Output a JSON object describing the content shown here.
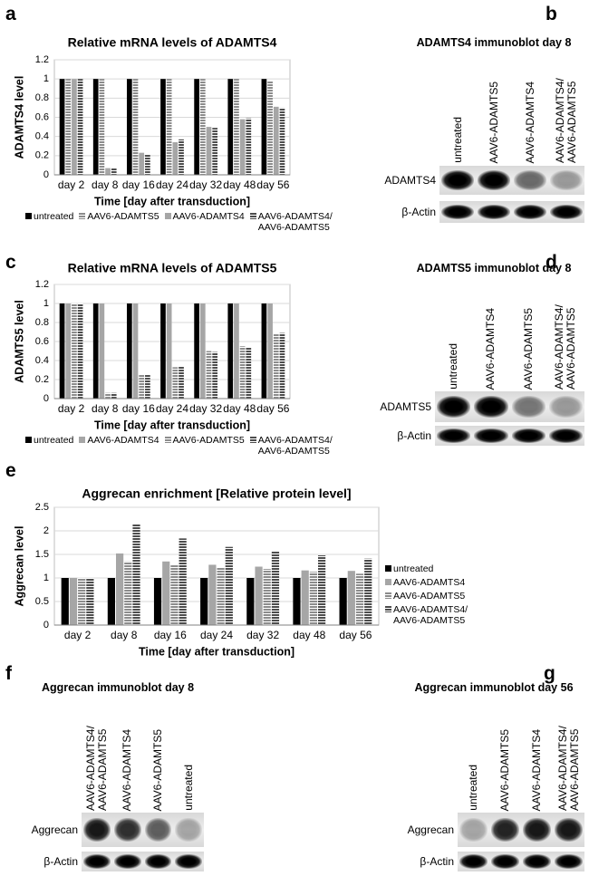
{
  "panel_letters": [
    "a",
    "b",
    "c",
    "d",
    "e",
    "f",
    "g"
  ],
  "chart_data": [
    {
      "type": "bar",
      "title": "Relative mRNA levels of ADAMTS4",
      "xlabel": "Time [day after transduction]",
      "ylabel": "ADAMTS4 level",
      "categories": [
        "day 2",
        "day 8",
        "day 16",
        "day 24",
        "day 32",
        "day 48",
        "day 56"
      ],
      "series": [
        {
          "name": "untreated",
          "color": "#000000",
          "hatch": false,
          "values": [
            1,
            1,
            1,
            1,
            1,
            1,
            1
          ]
        },
        {
          "name": "AAV6-ADAMTS5",
          "color": "#8c8c8c",
          "hatch": true,
          "values": [
            1,
            1,
            1,
            1,
            1,
            1,
            0.98
          ]
        },
        {
          "name": "AAV6-ADAMTS4",
          "color": "#a6a6a6",
          "hatch": false,
          "values": [
            1,
            0.07,
            0.23,
            0.34,
            0.5,
            0.58,
            0.71
          ]
        },
        {
          "name": "AAV6-ADAMTS4/ AAV6-ADAMTS5",
          "color": "#4d4d4d",
          "hatch": true,
          "values": [
            1,
            0.07,
            0.21,
            0.37,
            0.49,
            0.59,
            0.7
          ]
        }
      ],
      "ylim": [
        0,
        1.2
      ],
      "yticks": [
        0,
        0.2,
        0.4,
        0.6,
        0.8,
        1,
        1.2
      ],
      "grid": true,
      "legend": "bottom"
    },
    {
      "type": "bar",
      "title": "Relative mRNA levels of ADAMTS5",
      "xlabel": "Time [day after transduction]",
      "ylabel": "ADAMTS5 level",
      "categories": [
        "day 2",
        "day 8",
        "day 16",
        "day 24",
        "day 32",
        "day 48",
        "day 56"
      ],
      "series": [
        {
          "name": "untreated",
          "color": "#000000",
          "hatch": false,
          "values": [
            1,
            1,
            1,
            1,
            1,
            1,
            1
          ]
        },
        {
          "name": "AAV6-ADAMTS4",
          "color": "#a6a6a6",
          "hatch": false,
          "values": [
            1,
            1,
            1,
            1,
            1,
            1,
            1
          ]
        },
        {
          "name": "AAV6-ADAMTS5",
          "color": "#8c8c8c",
          "hatch": true,
          "values": [
            1,
            0.06,
            0.25,
            0.33,
            0.5,
            0.55,
            0.68
          ]
        },
        {
          "name": "AAV6-ADAMTS4/ AAV6-ADAMTS5",
          "color": "#4d4d4d",
          "hatch": true,
          "values": [
            1,
            0.06,
            0.25,
            0.34,
            0.49,
            0.54,
            0.69
          ]
        }
      ],
      "ylim": [
        0,
        1.2
      ],
      "yticks": [
        0,
        0.2,
        0.4,
        0.6,
        0.8,
        1,
        1.2
      ],
      "grid": true,
      "legend": "bottom"
    },
    {
      "type": "bar",
      "title": "Aggrecan enrichment [Relative protein level]",
      "xlabel": "Time [day after transduction]",
      "ylabel": "Aggrecan level",
      "categories": [
        "day 2",
        "day 8",
        "day 16",
        "day 24",
        "day 32",
        "day 48",
        "day 56"
      ],
      "series": [
        {
          "name": "untreated",
          "color": "#000000",
          "hatch": false,
          "values": [
            1,
            1,
            1,
            1,
            1,
            1,
            1
          ]
        },
        {
          "name": "AAV6-ADAMTS4",
          "color": "#a6a6a6",
          "hatch": false,
          "values": [
            1,
            1.52,
            1.35,
            1.28,
            1.24,
            1.16,
            1.15
          ]
        },
        {
          "name": "AAV6-ADAMTS5",
          "color": "#8c8c8c",
          "hatch": true,
          "values": [
            1,
            1.35,
            1.27,
            1.22,
            1.19,
            1.13,
            1.09
          ]
        },
        {
          "name": "AAV6-ADAMTS4/ AAV6-ADAMTS5",
          "color": "#4d4d4d",
          "hatch": true,
          "values": [
            1,
            2.14,
            1.84,
            1.66,
            1.57,
            1.48,
            1.41
          ]
        }
      ],
      "ylim": [
        0,
        2.5
      ],
      "yticks": [
        0,
        0.5,
        1,
        1.5,
        2,
        2.5
      ],
      "grid": true,
      "legend": "right"
    }
  ],
  "blots": [
    {
      "title": "ADAMTS4 immunoblot day 8",
      "lanes": [
        "untreated",
        "AAV6-ADAMTS5",
        "AAV6-ADAMTS4",
        "AAV6-ADAMTS4/ AAV6-ADAMTS5"
      ],
      "rows": [
        "ADAMTS4",
        "β-Actin"
      ]
    },
    {
      "title": "ADAMTS5 immunoblot day 8",
      "lanes": [
        "untreated",
        "AAV6-ADAMTS4",
        "AAV6-ADAMTS5",
        "AAV6-ADAMTS4/ AAV6-ADAMTS5"
      ],
      "rows": [
        "ADAMTS5",
        "β-Actin"
      ]
    },
    {
      "title": "Aggrecan immunoblot day 8",
      "lanes": [
        "AAV6-ADAMTS4/ AAV6-ADAMTS5",
        "AAV6-ADAMTS4",
        "AAV6-ADAMTS5",
        "untreated"
      ],
      "rows": [
        "Aggrecan",
        "β-Actin"
      ]
    },
    {
      "title": "Aggrecan immunoblot day 56",
      "lanes": [
        "untreated",
        "AAV6-ADAMTS5",
        "AAV6-ADAMTS4",
        "AAV6-ADAMTS4/ AAV6-ADAMTS5"
      ],
      "rows": [
        "Aggrecan",
        "β-Actin"
      ]
    }
  ]
}
